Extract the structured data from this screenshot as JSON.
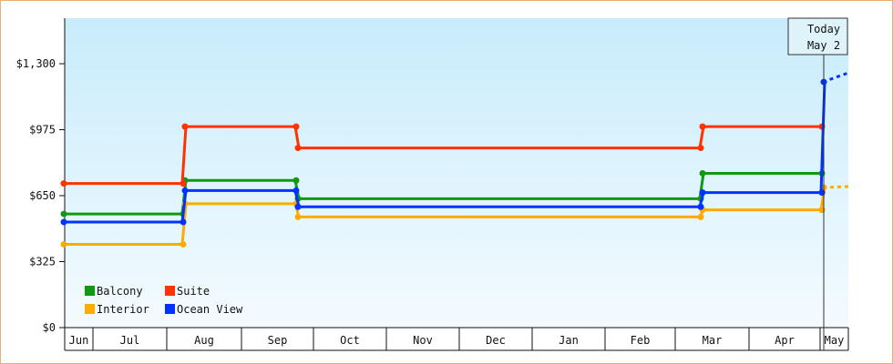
{
  "chart_data": {
    "type": "line",
    "step": true,
    "y_ticks": [
      {
        "value": 0,
        "label": "$0"
      },
      {
        "value": 325,
        "label": "$325"
      },
      {
        "value": 650,
        "label": "$650"
      },
      {
        "value": 975,
        "label": "$975"
      },
      {
        "value": 1300,
        "label": "$1,300"
      }
    ],
    "ylim": [
      0,
      1300
    ],
    "x_months": [
      {
        "label": "Jun"
      },
      {
        "label": "Jul"
      },
      {
        "label": "Aug"
      },
      {
        "label": "Sep"
      },
      {
        "label": "Oct"
      },
      {
        "label": "Nov"
      },
      {
        "label": "Dec"
      },
      {
        "label": "Jan"
      },
      {
        "label": "Feb"
      },
      {
        "label": "Mar"
      },
      {
        "label": "Apr"
      },
      {
        "label": "May"
      }
    ],
    "change_points": [
      "Jul 25",
      "Sep 11",
      "Feb 27",
      "May 2"
    ],
    "series": [
      {
        "name": "Balcony",
        "color": "#119911",
        "values": [
          560,
          725,
          635,
          760,
          760
        ],
        "projected": null
      },
      {
        "name": "Suite",
        "color": "#ff3300",
        "values": [
          710,
          990,
          885,
          990,
          990
        ],
        "projected": null
      },
      {
        "name": "Interior",
        "color": "#ffaa00",
        "values": [
          410,
          610,
          545,
          580,
          690
        ],
        "projected": 695
      },
      {
        "name": "Ocean View",
        "color": "#0033ff",
        "values": [
          520,
          675,
          595,
          665,
          1210
        ],
        "projected": 1255
      }
    ],
    "today": {
      "line1": "Today",
      "line2": "May 2"
    }
  }
}
